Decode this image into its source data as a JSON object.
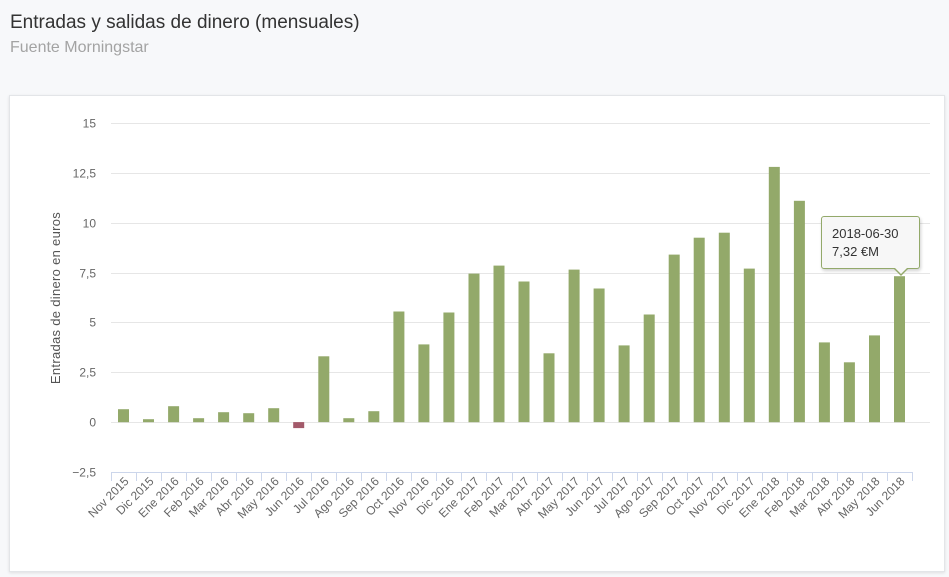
{
  "header": {
    "title": "Entradas y salidas de dinero (mensuales)",
    "subtitle": "Fuente Morningstar"
  },
  "tooltip": {
    "date": "2018-06-30",
    "value": "7,32 €M"
  },
  "colors": {
    "positive": "#93a96a",
    "negative": "#a35a6a",
    "grid": "#e6e6e6",
    "axis": "#ccd6eb"
  },
  "chart_data": {
    "type": "bar",
    "title": "Entradas y salidas de dinero (mensuales)",
    "subtitle": "Fuente Morningstar",
    "ylabel": "Entradas de dinero en euros",
    "ylim": [
      -2.5,
      15
    ],
    "yticks": [
      -2.5,
      0,
      2.5,
      5,
      7.5,
      10,
      12.5,
      15
    ],
    "ytick_labels": [
      "−2,5",
      "0",
      "2,5",
      "5",
      "7,5",
      "10",
      "12,5",
      "15"
    ],
    "grid": true,
    "legend": "none",
    "categories": [
      "Nov 2015",
      "Dic 2015",
      "Ene 2016",
      "Feb 2016",
      "Mar 2016",
      "Abr 2016",
      "May 2016",
      "Jun 2016",
      "Jul 2016",
      "Ago 2016",
      "Sep 2016",
      "Oct 2016",
      "Nov 2016",
      "Dic 2016",
      "Ene 2017",
      "Feb 2017",
      "Mar 2017",
      "Abr 2017",
      "May 2017",
      "Jun 2017",
      "Jul 2017",
      "Ago 2017",
      "Sep 2017",
      "Oct 2017",
      "Nov 2017",
      "Dic 2017",
      "Ene 2018",
      "Feb 2018",
      "Mar 2018",
      "Abr 2018",
      "May 2018",
      "Jun 2018"
    ],
    "values": [
      0.65,
      0.15,
      0.8,
      0.2,
      0.5,
      0.45,
      0.7,
      -0.3,
      3.3,
      0.2,
      0.55,
      5.55,
      3.9,
      5.5,
      7.45,
      7.85,
      7.05,
      3.45,
      7.65,
      6.7,
      3.85,
      5.4,
      8.4,
      9.25,
      9.5,
      7.7,
      12.8,
      11.1,
      4.0,
      3.0,
      4.35,
      7.32
    ]
  }
}
